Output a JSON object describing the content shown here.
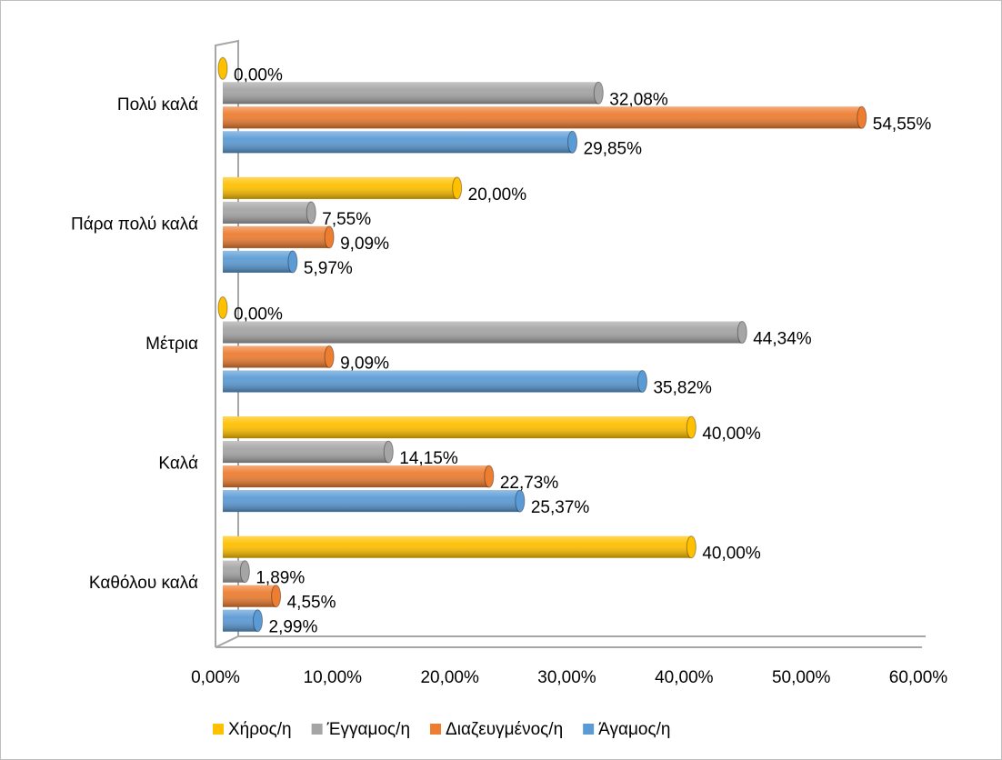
{
  "chart_data": {
    "type": "bar",
    "orientation": "horizontal",
    "categories": [
      "Καθόλου καλά",
      "Καλά",
      "Μέτρια",
      "Πάρα πολύ καλά",
      "Πολύ καλά"
    ],
    "series": [
      {
        "name": "Χήρος/η",
        "color": "#ffc000",
        "values": [
          40,
          40,
          0,
          20,
          0
        ],
        "value_labels": [
          "40,00%",
          "40,00%",
          "0,00%",
          "20,00%",
          "0,00%"
        ]
      },
      {
        "name": "Έγγαμος/η",
        "color": "#a5a5a5",
        "values": [
          1.89,
          14.15,
          44.34,
          7.55,
          32.08
        ],
        "value_labels": [
          "1,89%",
          "14,15%",
          "44,34%",
          "7,55%",
          "32,08%"
        ]
      },
      {
        "name": "Διαζευγμένος/η",
        "color": "#ed7d31",
        "values": [
          4.55,
          22.73,
          9.09,
          9.09,
          54.55
        ],
        "value_labels": [
          "4,55%",
          "22,73%",
          "9,09%",
          "9,09%",
          "54,55%"
        ]
      },
      {
        "name": "Άγαμος/η",
        "color": "#5b9bd5",
        "values": [
          2.99,
          25.37,
          35.82,
          5.97,
          29.85
        ],
        "value_labels": [
          "2,99%",
          "25,37%",
          "35,82%",
          "5,97%",
          "29,85%"
        ]
      }
    ],
    "xlim": [
      0,
      60
    ],
    "xticks": [
      {
        "value": 0,
        "label": "0,00%"
      },
      {
        "value": 10,
        "label": "10,00%"
      },
      {
        "value": 20,
        "label": "20,00%"
      },
      {
        "value": 30,
        "label": "30,00%"
      },
      {
        "value": 40,
        "label": "40,00%"
      },
      {
        "value": 50,
        "label": "50,00%"
      },
      {
        "value": 60,
        "label": "60,00%"
      }
    ],
    "legend": "bottom"
  }
}
